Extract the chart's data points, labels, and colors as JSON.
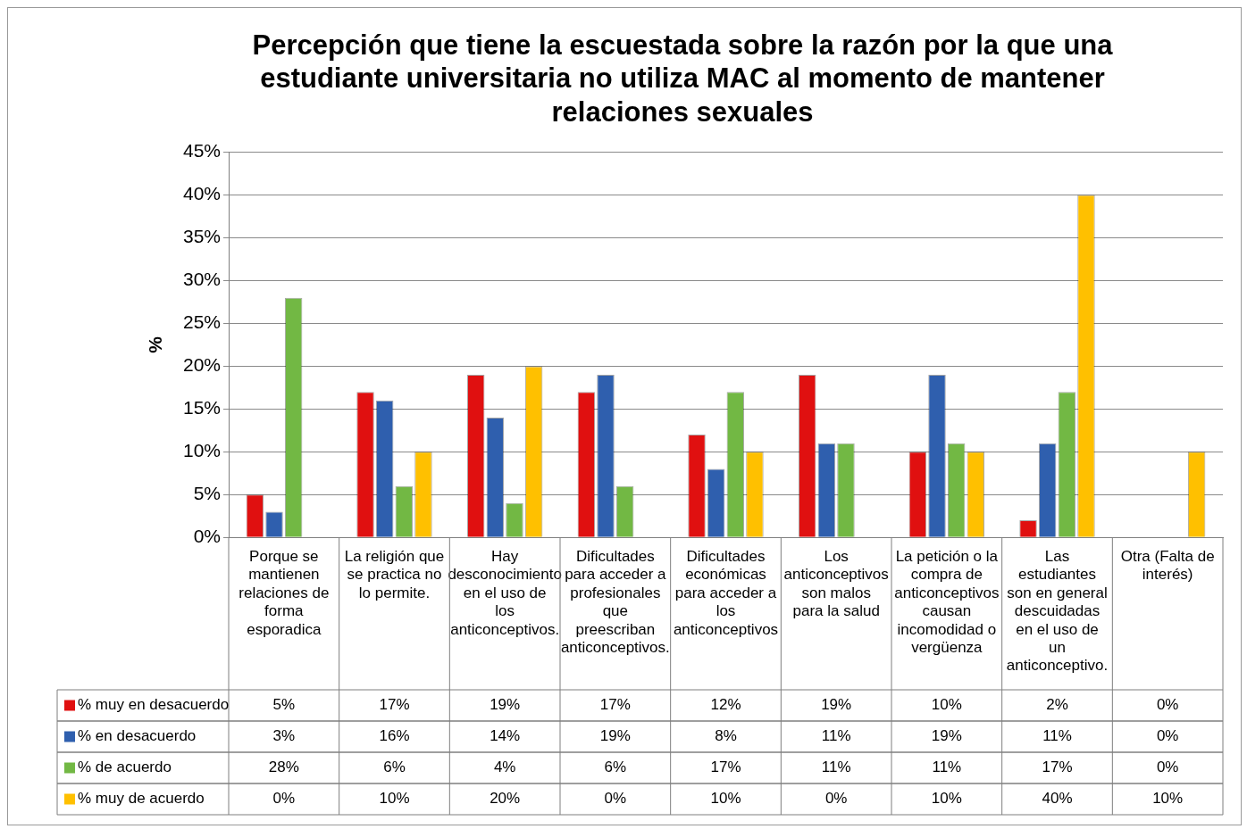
{
  "chart_data": {
    "type": "bar",
    "title": "Percepción que tiene la escuestada sobre la razón por la que una estudiante universitaria no utiliza MAC al momento de mantener relaciones sexuales",
    "ylabel": "%",
    "categories": [
      "Porque se mantienen relaciones de forma esporadica",
      "La religión que se practica no lo permite.",
      "Hay desconocimiento en el uso de los anticonceptivos.",
      "Dificultades para acceder a profesionales que preescriban anticonceptivos.",
      "Dificultades económicas para acceder a los anticonceptivos",
      "Los anticonceptivos son malos para la salud",
      "La petición o la compra de anticonceptivos causan incomodidad o vergüenza",
      "Las estudiantes son en general descuidadas en el uso de un anticonceptivo.",
      "Otra (Falta de interés)"
    ],
    "series": [
      {
        "name": "% muy en desacuerdo",
        "color": "#e01010",
        "values": [
          5,
          17,
          19,
          17,
          12,
          19,
          10,
          2,
          0
        ],
        "value_labels": [
          "5%",
          "17%",
          "19%",
          "17%",
          "12%",
          "19%",
          "10%",
          "2%",
          "0%"
        ]
      },
      {
        "name": "% en desacuerdo",
        "color": "#2f5fae",
        "values": [
          3,
          16,
          14,
          19,
          8,
          11,
          19,
          11,
          0
        ],
        "value_labels": [
          "3%",
          "16%",
          "14%",
          "19%",
          "8%",
          "11%",
          "19%",
          "11%",
          "0%"
        ]
      },
      {
        "name": "% de acuerdo",
        "color": "#72b844",
        "values": [
          28,
          6,
          4,
          6,
          17,
          11,
          11,
          17,
          0
        ],
        "value_labels": [
          "28%",
          "6%",
          "4%",
          "6%",
          "17%",
          "11%",
          "11%",
          "17%",
          "0%"
        ]
      },
      {
        "name": "% muy de acuerdo",
        "color": "#ffc000",
        "values": [
          0,
          10,
          20,
          0,
          10,
          0,
          10,
          40,
          10
        ],
        "value_labels": [
          "0%",
          "10%",
          "20%",
          "0%",
          "10%",
          "0%",
          "10%",
          "40%",
          "10%"
        ]
      }
    ],
    "ylim": [
      0,
      45
    ],
    "yticks": [
      {
        "value": 0,
        "label": "0%"
      },
      {
        "value": 5,
        "label": "5%"
      },
      {
        "value": 10,
        "label": "10%"
      },
      {
        "value": 15,
        "label": "15%"
      },
      {
        "value": 20,
        "label": "20%"
      },
      {
        "value": 25,
        "label": "25%"
      },
      {
        "value": 30,
        "label": "30%"
      },
      {
        "value": 35,
        "label": "35%"
      },
      {
        "value": 40,
        "label": "40%"
      },
      {
        "value": 45,
        "label": "45%"
      }
    ],
    "grid": "y",
    "legend": "bottom left"
  }
}
